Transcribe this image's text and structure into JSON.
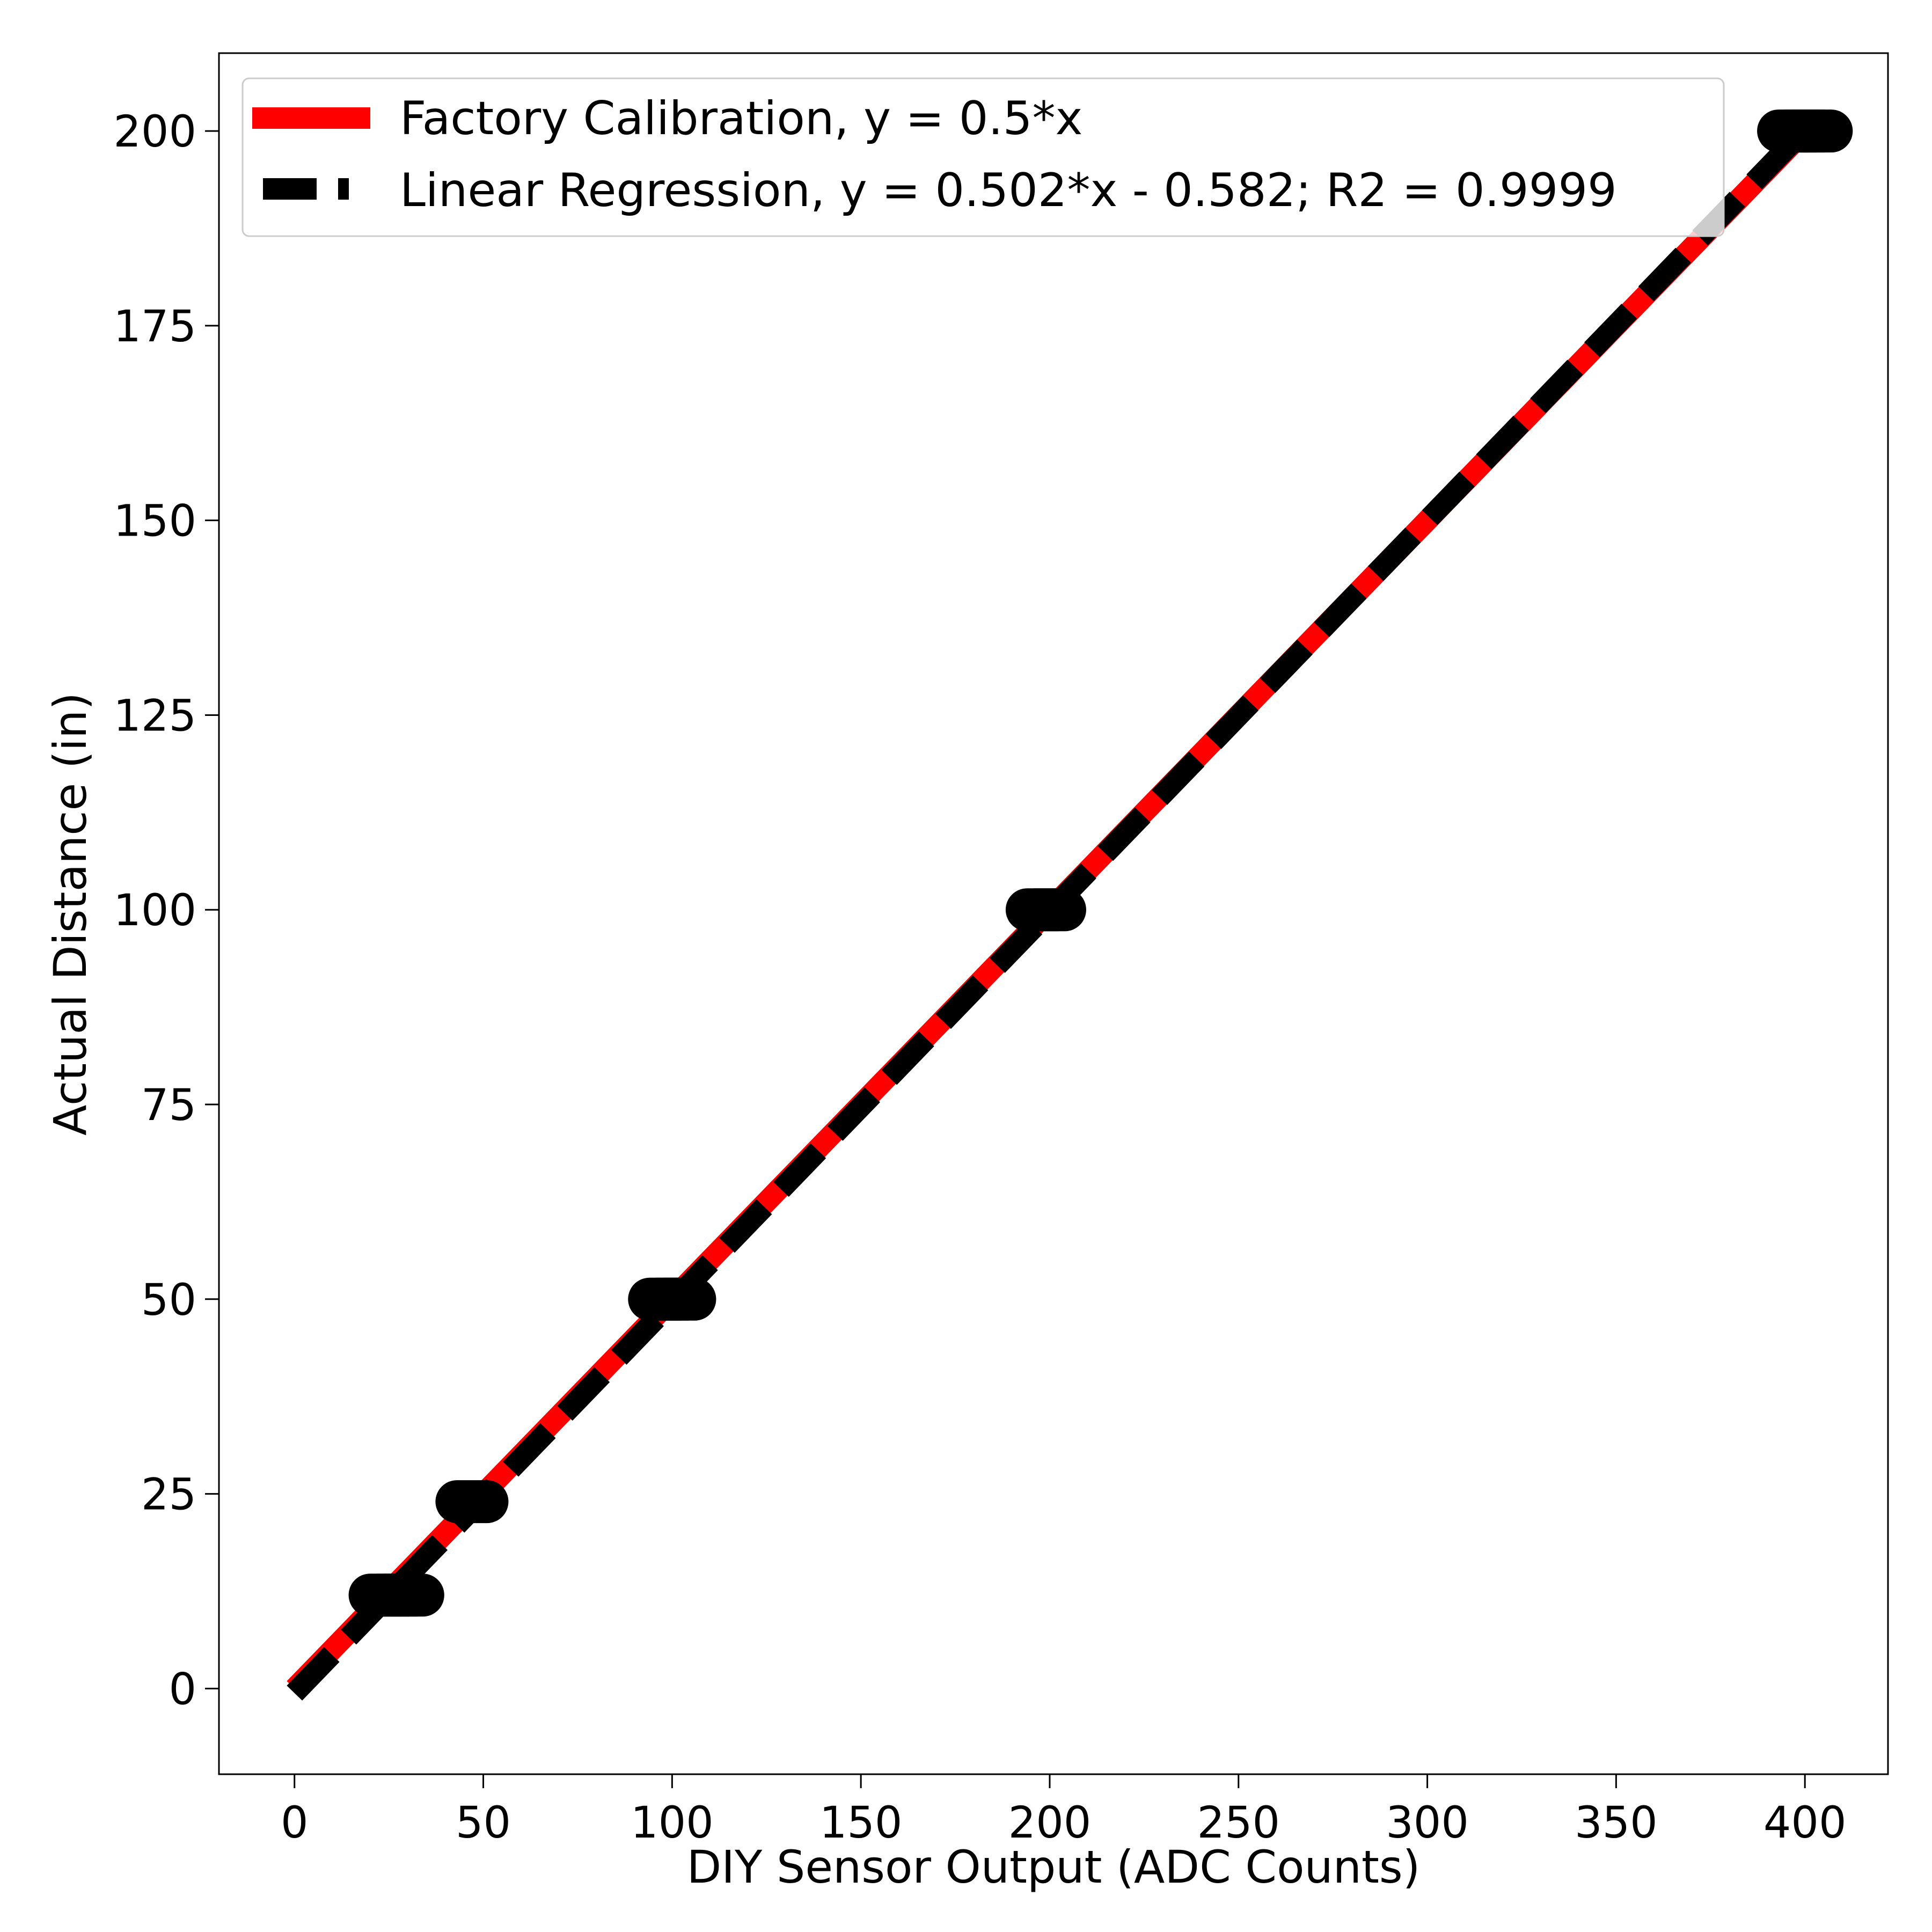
{
  "chart_data": {
    "type": "scatter",
    "title": "",
    "xlabel": "DIY Sensor Output (ADC Counts)",
    "ylabel": "Actual Distance (in)",
    "xlim": [
      -20,
      422
    ],
    "ylim": [
      -11,
      210
    ],
    "xticks": [
      0,
      50,
      100,
      150,
      200,
      250,
      300,
      350,
      400
    ],
    "yticks": [
      0,
      25,
      50,
      75,
      100,
      125,
      150,
      175,
      200
    ],
    "grid": false,
    "legend_position": "top-left",
    "points": {
      "x": [
        24,
        26,
        28,
        30,
        47,
        98,
        100,
        102,
        198,
        200,
        397,
        399,
        401,
        403
      ],
      "y": [
        12,
        12,
        12,
        12,
        24,
        50,
        50,
        50,
        100,
        100,
        200,
        200,
        200,
        200
      ],
      "color": "#000000"
    },
    "series": [
      {
        "name": "Factory Calibration, y = 0.5*x",
        "style": "solid",
        "color": "#ff0000",
        "x": [
          0,
          400
        ],
        "y": [
          0,
          200
        ]
      },
      {
        "name": "Linear Regression, y = 0.502*x - 0.582; R2 = 0.9999",
        "style": "dashed",
        "color": "#000000",
        "x": [
          0,
          400
        ],
        "y": [
          -0.582,
          200.218
        ]
      }
    ]
  }
}
